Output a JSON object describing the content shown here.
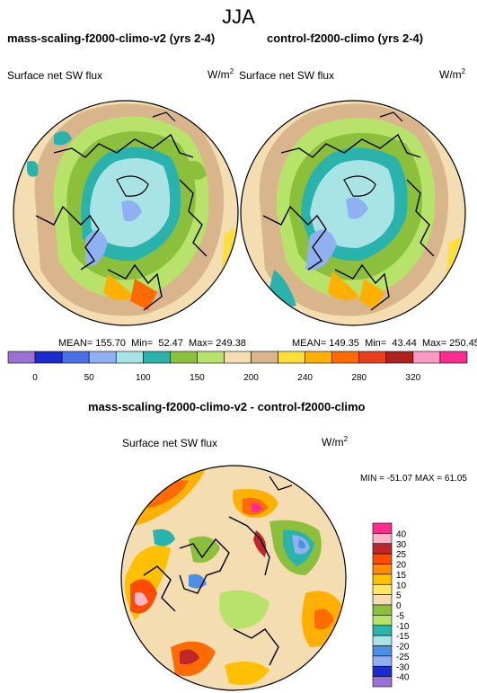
{
  "figure": {
    "season": "JJA",
    "panels": [
      {
        "title": "mass-scaling-f2000-climo-v2 (yrs 2-4)",
        "field": "Surface net SW flux",
        "units_base": "W/m",
        "units_exp": "2",
        "mean_label": "MEAN=",
        "mean": "155.70",
        "min_label": "Min=",
        "min": "52.47",
        "max_label": "Max=",
        "max": "249.38"
      },
      {
        "title": "control-f2000-climo (yrs 2-4)",
        "field": "Surface net SW flux",
        "units_base": "W/m",
        "units_exp": "2",
        "mean_label": "MEAN=",
        "mean": "149.35",
        "min_label": "Min=",
        "min": "43.44",
        "max_label": "Max=",
        "max": "250.45"
      }
    ],
    "colorbar_top": {
      "tick_labels": [
        "0",
        "50",
        "100",
        "150",
        "200",
        "240",
        "280",
        "320"
      ],
      "colors": [
        "#9b71d6",
        "#1b2bd0",
        "#4a6fe8",
        "#8fb1f2",
        "#a8e3e6",
        "#2ab3ac",
        "#8cbf3c",
        "#b8e36a",
        "#f3ddb1",
        "#d8b58b",
        "#ffdf3a",
        "#ffb000",
        "#ff6b00",
        "#e8401e",
        "#b02020",
        "#ff9bc2",
        "#ff2b8f"
      ]
    },
    "diff_panel": {
      "title": "mass-scaling-f2000-climo-v2 - control-f2000-climo",
      "field": "Surface net SW flux",
      "units_base": "W/m",
      "units_exp": "2",
      "stats": "MIN = -51.07 MAX =  61.05"
    },
    "colorbar_diff": {
      "tick_labels": [
        "40",
        "30",
        "25",
        "20",
        "15",
        "10",
        "5",
        "0",
        "-5",
        "-10",
        "-15",
        "-20",
        "-25",
        "-30",
        "-40"
      ],
      "colors": [
        "#ff2b8f",
        "#ffb3c6",
        "#c0262a",
        "#ff4b00",
        "#ff8c00",
        "#ffc000",
        "#ffe860",
        "#f3ddb1",
        "#8cbf3c",
        "#b8e36a",
        "#2ab3ac",
        "#a8e3e6",
        "#4a8fe8",
        "#8fb1f2",
        "#1b2bd0",
        "#9b71d6"
      ]
    }
  }
}
